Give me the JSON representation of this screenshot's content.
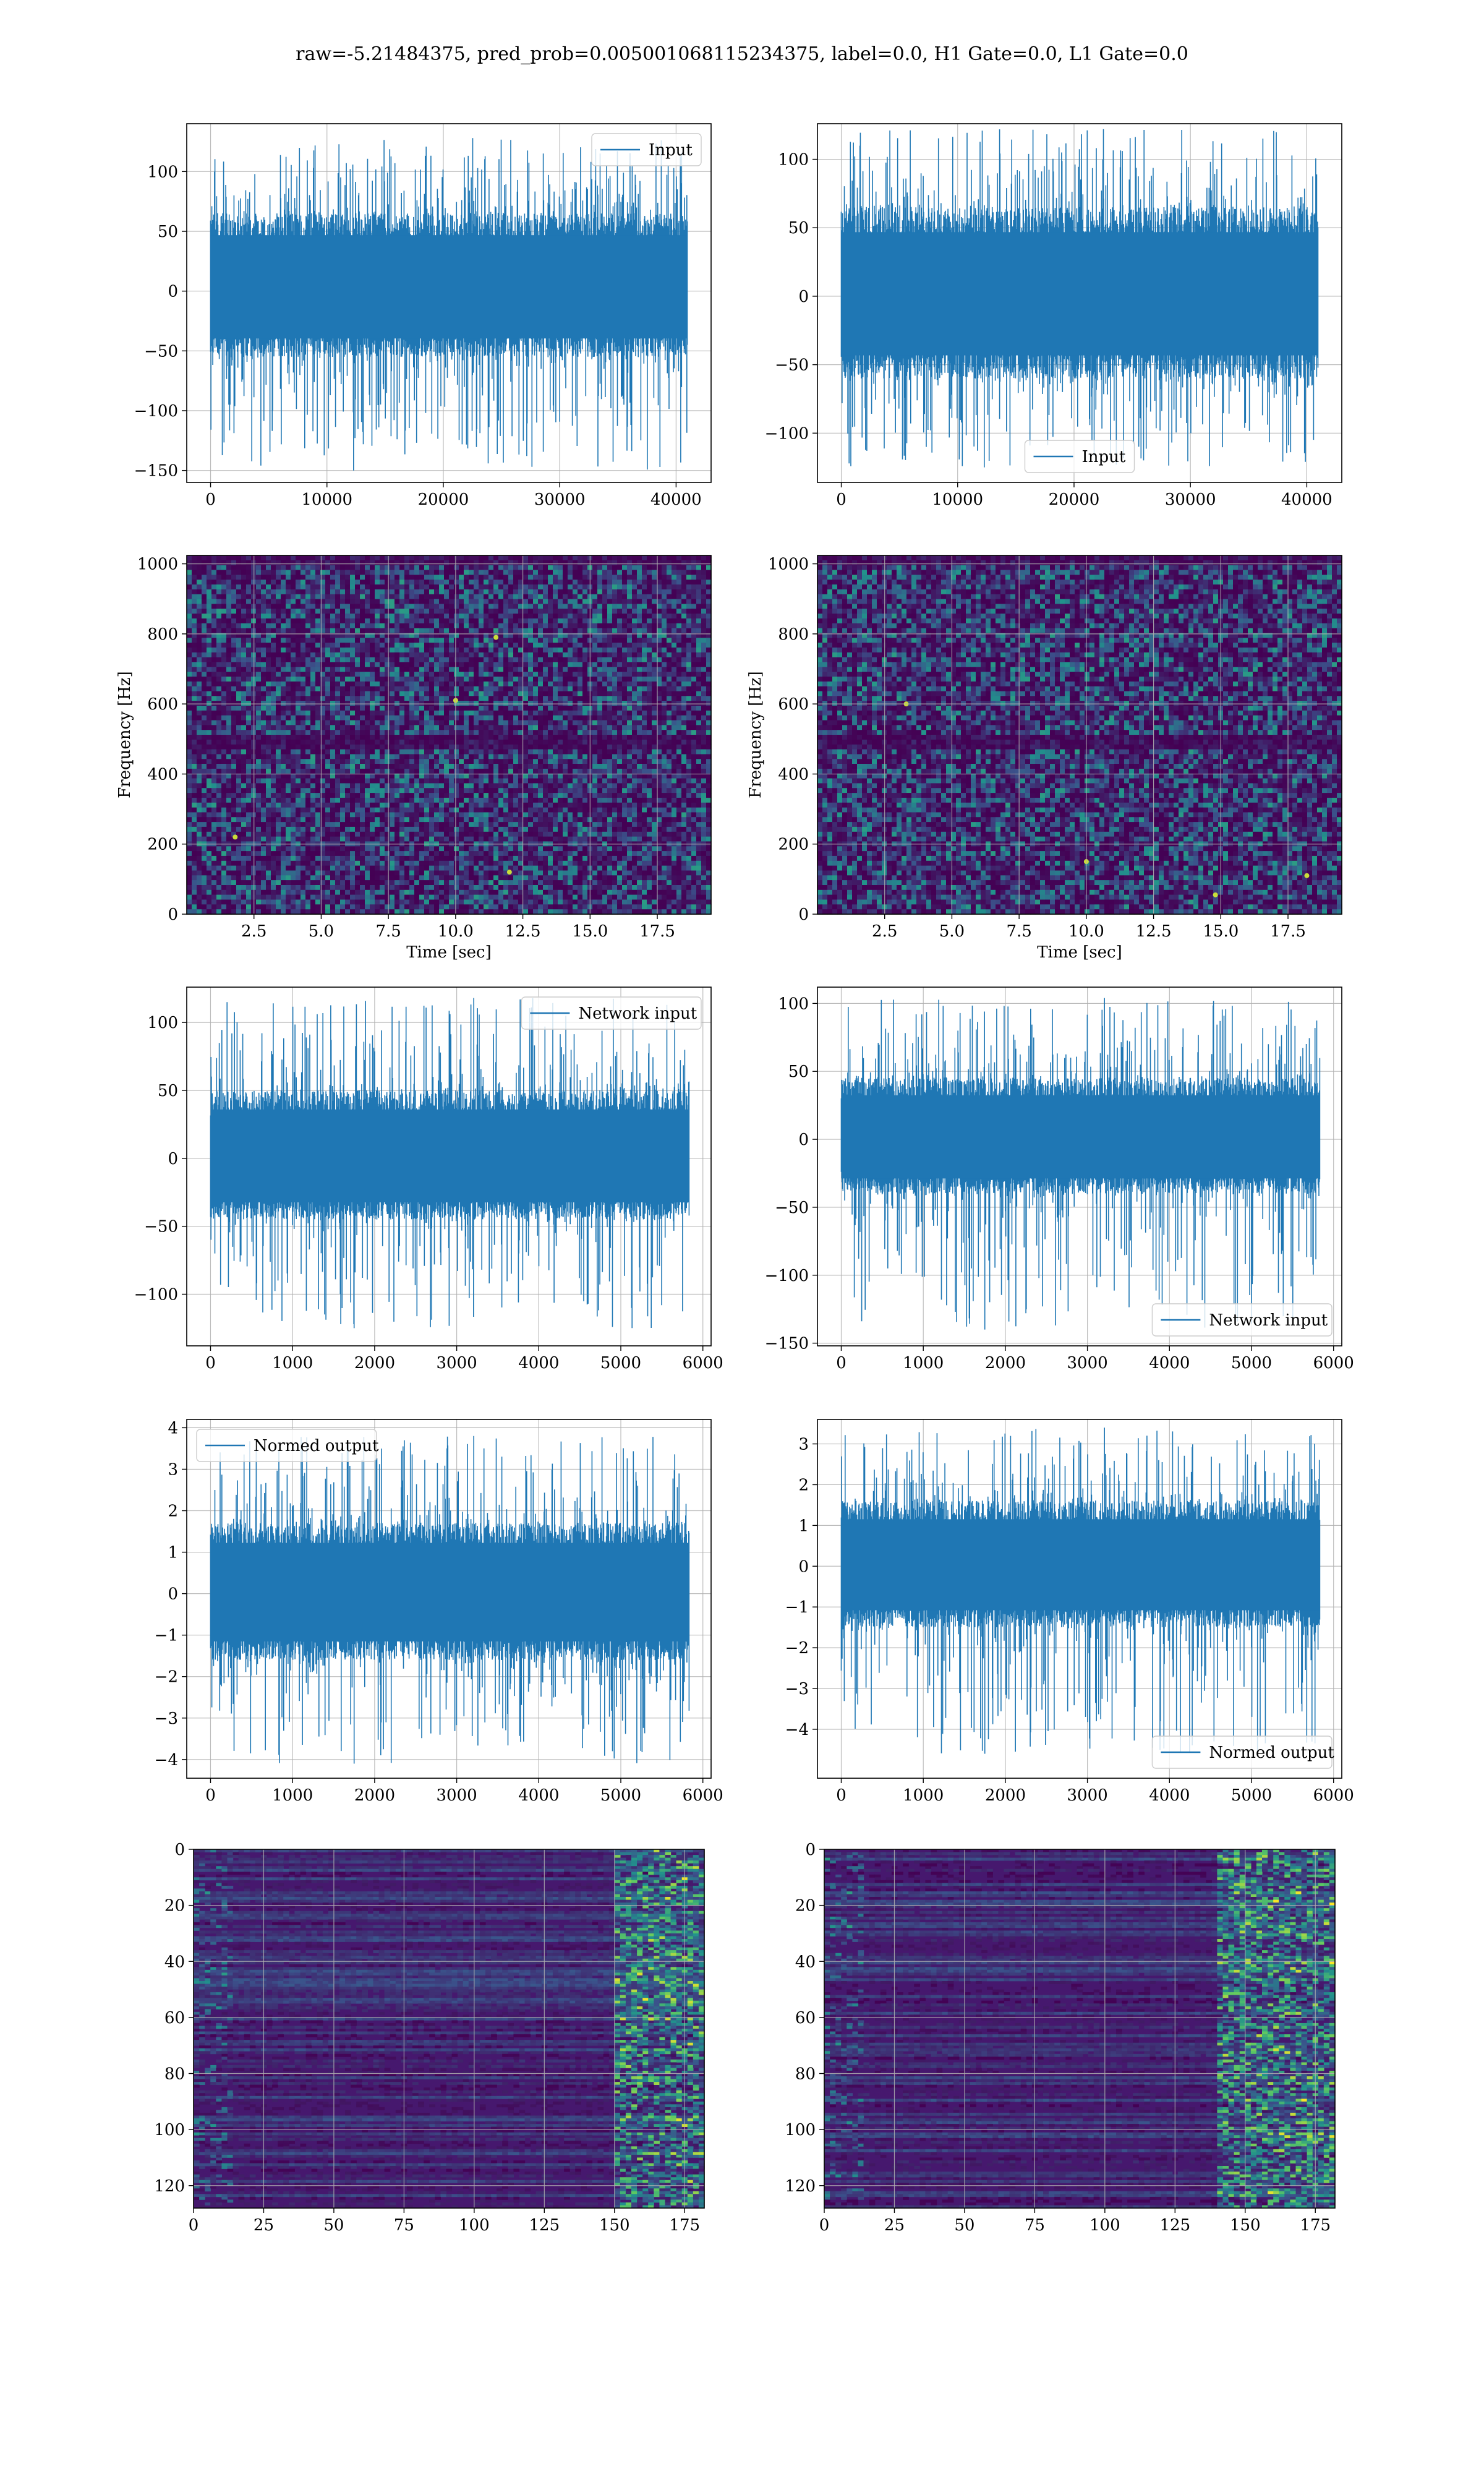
{
  "figure": {
    "suptitle": "raw=-5.21484375, pred_prob=0.005001068115234375, label=0.0, H1 Gate=0.0, L1 Gate=0.0",
    "colors": {
      "line": "#1f77b4",
      "grid": "#b0b0b0",
      "viridis_dark": "#440154",
      "viridis_mid": "#21918c",
      "viridis_bright": "#fde725"
    }
  },
  "chart_data": [
    {
      "id": "input-h1",
      "type": "line",
      "xlim": [
        -2048,
        43008
      ],
      "ylim": [
        -160,
        140
      ],
      "xticks": [
        0,
        10000,
        20000,
        30000,
        40000
      ],
      "yticks": [
        -150,
        -100,
        -50,
        0,
        50,
        100
      ],
      "legend": {
        "label": "Input",
        "loc": "upper right"
      },
      "series": [
        {
          "name": "Input",
          "n_samples": 40960,
          "x_range": [
            0,
            40960
          ],
          "core_band": [
            -55,
            65
          ],
          "y_min": -150,
          "y_max": 128
        }
      ]
    },
    {
      "id": "input-l1",
      "type": "line",
      "xlim": [
        -2048,
        43008
      ],
      "ylim": [
        -136,
        126
      ],
      "xticks": [
        0,
        10000,
        20000,
        30000,
        40000
      ],
      "yticks": [
        -100,
        -50,
        0,
        50,
        100
      ],
      "legend": {
        "label": "Input",
        "loc": "lower center"
      },
      "series": [
        {
          "name": "Input",
          "n_samples": 40960,
          "x_range": [
            0,
            40960
          ],
          "core_band": [
            -60,
            65
          ],
          "y_min": -125,
          "y_max": 122
        }
      ]
    },
    {
      "id": "spec-h1",
      "type": "heatmap",
      "colormap": "viridis",
      "xlabel": "Time [sec]",
      "ylabel": "Frequency [Hz]",
      "xlim": [
        0,
        19.5
      ],
      "ylim": [
        0,
        1024
      ],
      "xticks": [
        "2.5",
        "5.0",
        "7.5",
        "10.0",
        "12.5",
        "15.0",
        "17.5"
      ],
      "yticks": [
        "0",
        "200",
        "400",
        "600",
        "800",
        "1000"
      ],
      "dark_bands_hz": [
        490,
        1010
      ],
      "hotspots": [
        {
          "t": 10.0,
          "f": 610
        },
        {
          "t": 11.5,
          "f": 790
        },
        {
          "t": 1.8,
          "f": 220
        },
        {
          "t": 12.0,
          "f": 120
        }
      ]
    },
    {
      "id": "spec-l1",
      "type": "heatmap",
      "colormap": "viridis",
      "xlabel": "Time [sec]",
      "ylabel": "Frequency [Hz]",
      "xlim": [
        0,
        19.5
      ],
      "ylim": [
        0,
        1024
      ],
      "xticks": [
        "2.5",
        "5.0",
        "7.5",
        "10.0",
        "12.5",
        "15.0",
        "17.5"
      ],
      "yticks": [
        "0",
        "200",
        "400",
        "600",
        "800",
        "1000"
      ],
      "dark_bands_hz": [
        490,
        1010
      ],
      "hotspots": [
        {
          "t": 10.0,
          "f": 150
        },
        {
          "t": 18.2,
          "f": 110
        },
        {
          "t": 3.3,
          "f": 600
        },
        {
          "t": 14.8,
          "f": 55
        }
      ]
    },
    {
      "id": "network-input-h1",
      "type": "line",
      "xlim": [
        -290,
        6100
      ],
      "ylim": [
        -138,
        126
      ],
      "xticks": [
        0,
        1000,
        2000,
        3000,
        4000,
        5000,
        6000
      ],
      "yticks": [
        -100,
        -50,
        0,
        50,
        100
      ],
      "legend": {
        "label": "Network input",
        "loc": "upper right"
      },
      "series": [
        {
          "name": "Network input",
          "n_samples": 5832,
          "x_range": [
            0,
            5832
          ],
          "core_band": [
            -45,
            50
          ],
          "y_min": -125,
          "y_max": 118
        }
      ]
    },
    {
      "id": "network-input-l1",
      "type": "line",
      "xlim": [
        -290,
        6100
      ],
      "ylim": [
        -152,
        112
      ],
      "xticks": [
        0,
        1000,
        2000,
        3000,
        4000,
        5000,
        6000
      ],
      "yticks": [
        -150,
        -100,
        -50,
        0,
        50,
        100
      ],
      "legend": {
        "label": "Network input",
        "loc": "lower right"
      },
      "series": [
        {
          "name": "Network input",
          "n_samples": 5832,
          "x_range": [
            0,
            5832
          ],
          "core_band": [
            -40,
            45
          ],
          "y_min": -140,
          "y_max": 104
        }
      ]
    },
    {
      "id": "normed-output-h1",
      "type": "line",
      "xlim": [
        -290,
        6100
      ],
      "ylim": [
        -4.45,
        4.2
      ],
      "xticks": [
        0,
        1000,
        2000,
        3000,
        4000,
        5000,
        6000
      ],
      "yticks": [
        -4,
        -3,
        -2,
        -1,
        0,
        1,
        2,
        3,
        4
      ],
      "legend": {
        "label": "Normed output",
        "loc": "upper left"
      },
      "series": [
        {
          "name": "Normed output",
          "n_samples": 5832,
          "x_range": [
            0,
            5832
          ],
          "core_band": [
            -1.6,
            1.7
          ],
          "y_min": -4.1,
          "y_max": 3.8
        }
      ]
    },
    {
      "id": "normed-output-l1",
      "type": "line",
      "xlim": [
        -290,
        6100
      ],
      "ylim": [
        -5.2,
        3.6
      ],
      "xticks": [
        0,
        1000,
        2000,
        3000,
        4000,
        5000,
        6000
      ],
      "yticks": [
        -4,
        -3,
        -2,
        -1,
        0,
        1,
        2,
        3
      ],
      "legend": {
        "label": "Normed output",
        "loc": "lower right"
      },
      "series": [
        {
          "name": "Normed output",
          "n_samples": 5832,
          "x_range": [
            0,
            5832
          ],
          "core_band": [
            -1.5,
            1.6
          ],
          "y_min": -4.6,
          "y_max": 3.4
        }
      ]
    },
    {
      "id": "feature-map-h1",
      "type": "heatmap",
      "colormap": "viridis",
      "xlim": [
        0,
        182
      ],
      "ylim": [
        128,
        0
      ],
      "xticks": [
        "0",
        "25",
        "50",
        "75",
        "100",
        "125",
        "150",
        "175"
      ],
      "yticks": [
        "0",
        "20",
        "40",
        "60",
        "80",
        "100",
        "120"
      ],
      "bright_columns_from": 150
    },
    {
      "id": "feature-map-l1",
      "type": "heatmap",
      "colormap": "viridis",
      "xlim": [
        0,
        182
      ],
      "ylim": [
        128,
        0
      ],
      "xticks": [
        "0",
        "25",
        "50",
        "75",
        "100",
        "125",
        "150",
        "175"
      ],
      "yticks": [
        "0",
        "20",
        "40",
        "60",
        "80",
        "100",
        "120"
      ],
      "bright_columns_from": 140
    }
  ]
}
